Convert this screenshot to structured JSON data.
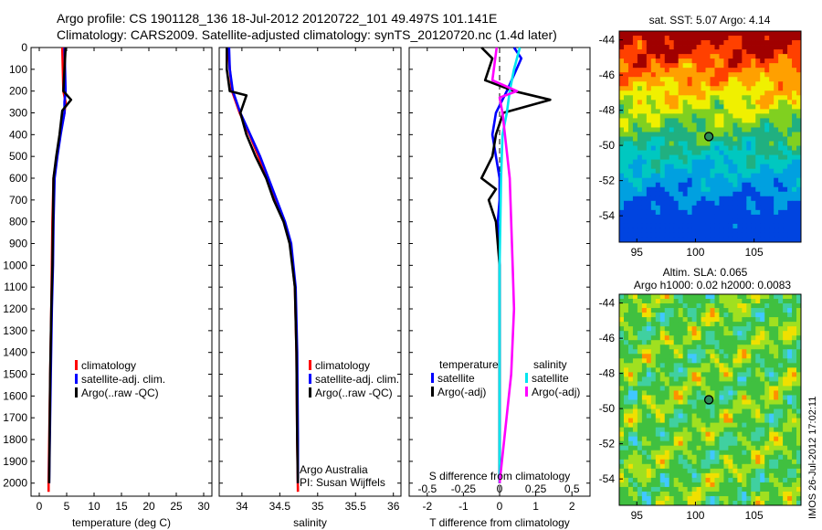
{
  "header": {
    "title_line1": "Argo profile: CS 1901128_136 18-Jul-2012 20120722_101 49.497S 101.141E",
    "title_line2": "Climatology: CARS2009. Satellite-adjusted climatology: synTS_20120720.nc (1.4d later)"
  },
  "footer": {
    "stamp": "IMOS 26-Jul-2012 17:02:11"
  },
  "colors": {
    "climatology": "#ff0000",
    "satellite": "#0000ff",
    "argo": "#000000",
    "s_satellite": "#00e5ee",
    "s_argo": "#ff00ff"
  },
  "chart_data": [
    {
      "name": "temperature",
      "type": "line",
      "xlabel": "temperature (deg C)",
      "xlim": [
        -1.5,
        31.5
      ],
      "xticks": [
        0,
        5,
        10,
        15,
        20,
        25,
        30
      ],
      "ylim": [
        0,
        2060
      ],
      "yticks": [
        0,
        100,
        200,
        300,
        400,
        500,
        600,
        700,
        800,
        900,
        1000,
        1100,
        1200,
        1300,
        1400,
        1500,
        1600,
        1700,
        1800,
        1900,
        2000
      ],
      "legend": {
        "placement": "lower-center",
        "entries": [
          "climatology",
          "satellite-adj. clim.",
          "Argo(..raw -QC)"
        ]
      },
      "series": [
        {
          "name": "climatology",
          "x": [
            4.2,
            4.3,
            4.4,
            4.8,
            4.6,
            3.8,
            3.2,
            2.6,
            2.4,
            2.3,
            2.2,
            2.0,
            1.7,
            1.7
          ],
          "y": [
            0,
            100,
            200,
            250,
            300,
            400,
            500,
            600,
            800,
            1000,
            1200,
            1500,
            2000,
            2040
          ]
        },
        {
          "name": "satellite-adj. clim.",
          "x": [
            4.6,
            4.7,
            4.8,
            4.6,
            4.6,
            3.9,
            3.3,
            2.8,
            2.6,
            2.5,
            2.3,
            2.1,
            1.8
          ],
          "y": [
            0,
            100,
            200,
            250,
            300,
            400,
            500,
            600,
            800,
            1000,
            1200,
            1500,
            2000
          ]
        },
        {
          "name": "Argo(..raw -QC)",
          "x": [
            4.8,
            4.6,
            4.4,
            5.8,
            4.2,
            3.7,
            3.1,
            2.6,
            2.5,
            2.4,
            2.2,
            2.0,
            1.8
          ],
          "y": [
            0,
            100,
            200,
            240,
            290,
            400,
            500,
            600,
            800,
            1000,
            1200,
            1500,
            2000
          ]
        }
      ]
    },
    {
      "name": "salinity",
      "type": "line",
      "xlabel": "salinity",
      "xlim": [
        33.7,
        36.1
      ],
      "xticks": [
        34,
        34.5,
        35,
        35.5,
        36
      ],
      "ylim": [
        0,
        2060
      ],
      "legend": {
        "placement": "lower-right",
        "entries": [
          "climatology",
          "satellite-adj. clim.",
          "Argo(..raw -QC)"
        ]
      },
      "annotation": [
        "Argo Australia",
        "PI: Susan Wijffels"
      ],
      "series": [
        {
          "name": "climatology",
          "x": [
            33.82,
            33.84,
            33.87,
            33.97,
            34.1,
            34.22,
            34.33,
            34.44,
            34.56,
            34.64,
            34.7,
            34.72,
            34.73,
            34.74
          ],
          "y": [
            0,
            100,
            200,
            300,
            400,
            500,
            600,
            700,
            800,
            900,
            1100,
            1400,
            1800,
            2040
          ]
        },
        {
          "name": "satellite-adj. clim.",
          "x": [
            33.83,
            33.84,
            33.88,
            33.98,
            34.11,
            34.24,
            34.35,
            34.46,
            34.57,
            34.65,
            34.71,
            34.73,
            34.74,
            34.74
          ],
          "y": [
            0,
            100,
            200,
            300,
            400,
            500,
            600,
            700,
            800,
            900,
            1100,
            1400,
            1800,
            2000
          ]
        },
        {
          "name": "Argo(..raw -QC)",
          "x": [
            33.8,
            33.8,
            33.84,
            34.06,
            33.98,
            34.06,
            34.18,
            34.32,
            34.42,
            34.55,
            34.63,
            34.7,
            34.72,
            34.73,
            34.74
          ],
          "y": [
            0,
            100,
            200,
            220,
            300,
            400,
            500,
            600,
            700,
            800,
            900,
            1100,
            1400,
            1800,
            2000
          ]
        }
      ]
    },
    {
      "name": "difference",
      "type": "line",
      "xlabel": "T difference from climatology",
      "xlabel_top": "S difference from climatology",
      "xlim": [
        -2.5,
        2.5
      ],
      "xticks": [
        -2,
        -1,
        0,
        1,
        2
      ],
      "xticks_top": [
        -0.5,
        -0.25,
        0,
        0.25,
        0.5
      ],
      "xlim_top": [
        -0.625,
        0.625
      ],
      "ylim": [
        0,
        2060
      ],
      "legend": {
        "placement": "lower-center",
        "headers": [
          "temperature",
          "salinity"
        ],
        "entries": [
          "satellite",
          "Argo(-adj)",
          "satellite",
          "Argo(-adj)"
        ]
      },
      "series": [
        {
          "name": "satellite",
          "x": [
            0.4,
            0.6,
            0.2,
            -0.1,
            -0.2,
            -0.1,
            0.0,
            0.0,
            -0.05,
            0.0,
            0.0,
            0.0
          ],
          "y": [
            0,
            50,
            200,
            300,
            400,
            500,
            600,
            700,
            800,
            1000,
            1500,
            2000
          ]
        },
        {
          "name": "Argo(-adj)",
          "x": [
            -0.5,
            -0.2,
            -0.4,
            0.4,
            1.4,
            0.1,
            -0.1,
            -0.2,
            -0.5,
            -0.1,
            -0.3,
            -0.1,
            0.0,
            0.0,
            0.0
          ],
          "y": [
            0,
            50,
            150,
            200,
            240,
            300,
            400,
            500,
            600,
            650,
            700,
            800,
            1000,
            1500,
            2000
          ]
        },
        {
          "name": "satellite",
          "x": [
            0.14,
            0.1,
            0.07,
            0.05,
            0.02,
            0.01,
            0.0,
            0.0
          ],
          "y": [
            0,
            100,
            200,
            300,
            400,
            600,
            1000,
            2000
          ]
        },
        {
          "name": "Argo(-adj)",
          "x": [
            -0.02,
            -0.05,
            0.12,
            0.0,
            0.02,
            0.07,
            0.09,
            0.1,
            0.08,
            0.0
          ],
          "y": [
            0,
            150,
            200,
            230,
            300,
            600,
            1000,
            1200,
            1500,
            2000
          ]
        }
      ]
    },
    {
      "name": "sst-map",
      "type": "heatmap",
      "title": "sat. SST: 5.07  Argo: 4.14",
      "xlim": [
        93.5,
        109
      ],
      "ylim": [
        -55.5,
        -43.5
      ],
      "xticks": [
        95,
        100,
        105
      ],
      "yticks": [
        -44,
        -46,
        -48,
        -50,
        -52,
        -54
      ],
      "marker": {
        "lon": 101.141,
        "lat": -49.497
      }
    },
    {
      "name": "sla-map",
      "type": "heatmap",
      "title_line1": "Altim. SLA: 0.065",
      "title_line2": "Argo h1000: 0.02 h2000: 0.0083",
      "xlim": [
        93.5,
        109
      ],
      "ylim": [
        -55.5,
        -43.5
      ],
      "xticks": [
        95,
        100,
        105
      ],
      "yticks": [
        -44,
        -46,
        -48,
        -50,
        -52,
        -54
      ],
      "marker": {
        "lon": 101.141,
        "lat": -49.497
      }
    }
  ]
}
